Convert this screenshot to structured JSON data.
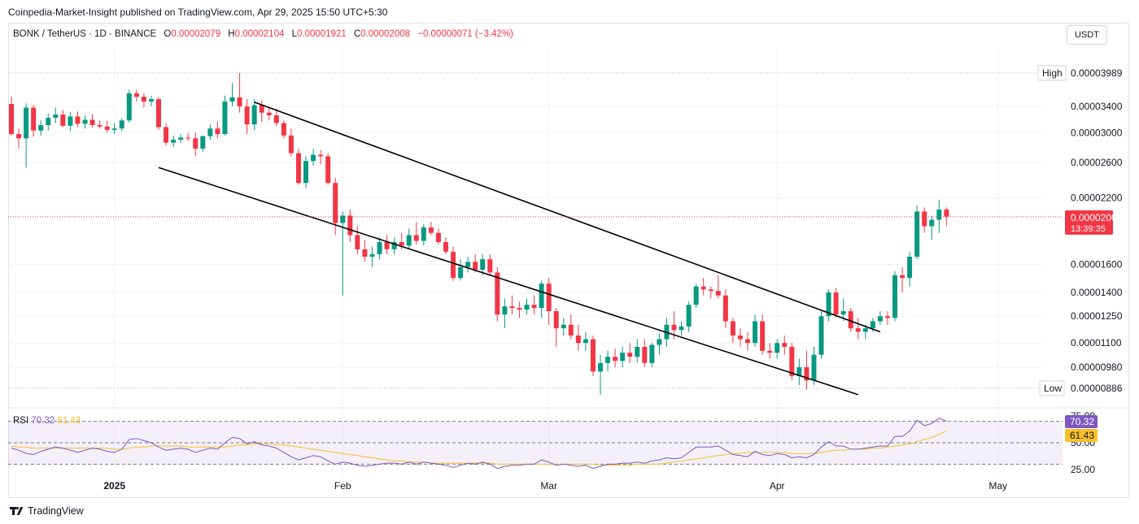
{
  "publisher": "Coinpedia-Market-Insight published on TradingView.com, Apr 29, 2025 15:50 UTC+5:30",
  "legend": {
    "symbol": "BONK / TetherUS · 1D · BINANCE",
    "o_label": "O",
    "o_value": "0.00002079",
    "h_label": "H",
    "h_value": "0.00002104",
    "l_label": "L",
    "l_value": "0.00001921",
    "c_label": "C",
    "c_value": "0.00002008",
    "change": "−0.00000071 (−3.42%)"
  },
  "currency_button": "USDT",
  "brand": "TradingView",
  "colors": {
    "up": "#089981",
    "down": "#f23645",
    "rsi": "#7e57c2",
    "rsi_ma": "#f7c02b",
    "trendline": "#000000"
  },
  "chart_data": {
    "type": "candlestick",
    "price_axis": {
      "ticks": [
        {
          "v": 3.4e-05,
          "label": "0.00003400"
        },
        {
          "v": 3e-05,
          "label": "0.00003000"
        },
        {
          "v": 2.6e-05,
          "label": "0.00002600"
        },
        {
          "v": 2.2e-05,
          "label": "0.00002200"
        },
        {
          "v": 1.6e-05,
          "label": "0.00001600"
        },
        {
          "v": 1.4e-05,
          "label": "0.00001400"
        },
        {
          "v": 1.25e-05,
          "label": "0.00001250"
        },
        {
          "v": 1.1e-05,
          "label": "0.00001100"
        },
        {
          "v": 9.8e-06,
          "label": "0.00000980"
        }
      ],
      "high": {
        "label": "High",
        "value": 3.989e-05,
        "text": "0.00003989"
      },
      "low": {
        "label": "Low",
        "value": 8.86e-06,
        "text": "0.00000886"
      },
      "last": {
        "value": 2.008e-05,
        "text": "0.00002008",
        "countdown": "13:39:35"
      }
    },
    "time_axis": [
      {
        "date": "2025-01-01",
        "label": "2025",
        "bold": true
      },
      {
        "date": "2025-02-01",
        "label": "Feb",
        "bold": false
      },
      {
        "date": "2025-03-01",
        "label": "Mar",
        "bold": false
      },
      {
        "date": "2025-04-01",
        "label": "Apr",
        "bold": false
      },
      {
        "date": "2025-05-01",
        "label": "May",
        "bold": false
      }
    ],
    "first_date": "2024-12-18",
    "candles": [
      [
        3.44e-05,
        3.56e-05,
        2.96e-05,
        2.98e-05
      ],
      [
        2.98e-05,
        3.06e-05,
        2.78e-05,
        2.92e-05
      ],
      [
        2.92e-05,
        3.45e-05,
        2.54e-05,
        3.38e-05
      ],
      [
        3.38e-05,
        3.42e-05,
        2.94e-05,
        3.03e-05
      ],
      [
        3.03e-05,
        3.18e-05,
        2.96e-05,
        3.11e-05
      ],
      [
        3.11e-05,
        3.29e-05,
        3.03e-05,
        3.22e-05
      ],
      [
        3.22e-05,
        3.38e-05,
        3.14e-05,
        3.27e-05
      ],
      [
        3.27e-05,
        3.34e-05,
        3.08e-05,
        3.1e-05
      ],
      [
        3.1e-05,
        3.31e-05,
        3.02e-05,
        3.24e-05
      ],
      [
        3.24e-05,
        3.32e-05,
        3.08e-05,
        3.13e-05
      ],
      [
        3.13e-05,
        3.26e-05,
        3.06e-05,
        3.19e-05
      ],
      [
        3.19e-05,
        3.28e-05,
        3.08e-05,
        3.11e-05
      ],
      [
        3.11e-05,
        3.18e-05,
        3.06e-05,
        3.09e-05
      ],
      [
        3.09e-05,
        3.18e-05,
        3e-05,
        3.04e-05
      ],
      [
        3.04e-05,
        3.14e-05,
        2.98e-05,
        3.06e-05
      ],
      [
        3.06e-05,
        3.22e-05,
        3.02e-05,
        3.18e-05
      ],
      [
        3.18e-05,
        3.68e-05,
        3.15e-05,
        3.62e-05
      ],
      [
        3.62e-05,
        3.68e-05,
        3.48e-05,
        3.56e-05
      ],
      [
        3.56e-05,
        3.62e-05,
        3.38e-05,
        3.48e-05
      ],
      [
        3.48e-05,
        3.58e-05,
        3.4e-05,
        3.52e-05
      ],
      [
        3.52e-05,
        3.56e-05,
        3.04e-05,
        3.08e-05
      ],
      [
        3.08e-05,
        3.14e-05,
        2.82e-05,
        2.86e-05
      ],
      [
        2.86e-05,
        2.96e-05,
        2.8e-05,
        2.9e-05
      ],
      [
        2.9e-05,
        2.98e-05,
        2.86e-05,
        2.93e-05
      ],
      [
        2.93e-05,
        2.99e-05,
        2.88e-05,
        2.92e-05
      ],
      [
        2.92e-05,
        3e-05,
        2.68e-05,
        2.78e-05
      ],
      [
        2.78e-05,
        2.96e-05,
        2.74e-05,
        2.95e-05
      ],
      [
        2.95e-05,
        3.12e-05,
        2.9e-05,
        3.06e-05
      ],
      [
        3.06e-05,
        3.16e-05,
        2.92e-05,
        2.98e-05
      ],
      [
        2.98e-05,
        3.58e-05,
        2.96e-05,
        3.48e-05
      ],
      [
        3.48e-05,
        3.8e-05,
        3.4e-05,
        3.55e-05
      ],
      [
        3.55e-05,
        3.99e-05,
        3.3e-05,
        3.4e-05
      ],
      [
        3.4e-05,
        3.52e-05,
        2.98e-05,
        3.12e-05
      ],
      [
        3.12e-05,
        3.52e-05,
        3.04e-05,
        3.42e-05
      ],
      [
        3.42e-05,
        3.5e-05,
        3.16e-05,
        3.3e-05
      ],
      [
        3.3e-05,
        3.38e-05,
        3.18e-05,
        3.26e-05
      ],
      [
        3.26e-05,
        3.36e-05,
        3.1e-05,
        3.14e-05
      ],
      [
        3.14e-05,
        3.18e-05,
        2.92e-05,
        2.96e-05
      ],
      [
        2.96e-05,
        3.06e-05,
        2.68e-05,
        2.72e-05
      ],
      [
        2.72e-05,
        2.78e-05,
        2.34e-05,
        2.36e-05
      ],
      [
        2.36e-05,
        2.68e-05,
        2.3e-05,
        2.62e-05
      ],
      [
        2.62e-05,
        2.78e-05,
        2.56e-05,
        2.7e-05
      ],
      [
        2.7e-05,
        2.76e-05,
        2.58e-05,
        2.68e-05
      ],
      [
        2.68e-05,
        2.72e-05,
        2.34e-05,
        2.36e-05
      ],
      [
        2.36e-05,
        2.42e-05,
        1.84e-05,
        1.95e-05
      ],
      [
        1.95e-05,
        2.06e-05,
        1.38e-05,
        2.02e-05
      ],
      [
        2.02e-05,
        2.08e-05,
        1.78e-05,
        1.84e-05
      ],
      [
        1.84e-05,
        1.92e-05,
        1.68e-05,
        1.72e-05
      ],
      [
        1.72e-05,
        1.8e-05,
        1.62e-05,
        1.66e-05
      ],
      [
        1.66e-05,
        1.74e-05,
        1.58e-05,
        1.68e-05
      ],
      [
        1.68e-05,
        1.82e-05,
        1.64e-05,
        1.78e-05
      ],
      [
        1.78e-05,
        1.84e-05,
        1.68e-05,
        1.72e-05
      ],
      [
        1.72e-05,
        1.82e-05,
        1.68e-05,
        1.78e-05
      ],
      [
        1.78e-05,
        1.86e-05,
        1.72e-05,
        1.75e-05
      ],
      [
        1.75e-05,
        1.9e-05,
        1.72e-05,
        1.84e-05
      ],
      [
        1.84e-05,
        1.96e-05,
        1.76e-05,
        1.79e-05
      ],
      [
        1.79e-05,
        1.94e-05,
        1.75e-05,
        1.91e-05
      ],
      [
        1.91e-05,
        1.96e-05,
        1.84e-05,
        1.86e-05
      ],
      [
        1.86e-05,
        1.9e-05,
        1.76e-05,
        1.78e-05
      ],
      [
        1.78e-05,
        1.82e-05,
        1.68e-05,
        1.7e-05
      ],
      [
        1.7e-05,
        1.74e-05,
        1.48e-05,
        1.5e-05
      ],
      [
        1.5e-05,
        1.64e-05,
        1.48e-05,
        1.58e-05
      ],
      [
        1.58e-05,
        1.66e-05,
        1.54e-05,
        1.62e-05
      ],
      [
        1.62e-05,
        1.68e-05,
        1.54e-05,
        1.56e-05
      ],
      [
        1.56e-05,
        1.68e-05,
        1.52e-05,
        1.64e-05
      ],
      [
        1.64e-05,
        1.68e-05,
        1.52e-05,
        1.54e-05
      ],
      [
        1.54e-05,
        1.58e-05,
        1.22e-05,
        1.26e-05
      ],
      [
        1.26e-05,
        1.36e-05,
        1.18e-05,
        1.31e-05
      ],
      [
        1.31e-05,
        1.38e-05,
        1.26e-05,
        1.3e-05
      ],
      [
        1.3e-05,
        1.34e-05,
        1.24e-05,
        1.29e-05
      ],
      [
        1.29e-05,
        1.36e-05,
        1.26e-05,
        1.32e-05
      ],
      [
        1.32e-05,
        1.38e-05,
        1.26e-05,
        1.3e-05
      ],
      [
        1.3e-05,
        1.48e-05,
        1.24e-05,
        1.46e-05
      ],
      [
        1.46e-05,
        1.5e-05,
        1.2e-05,
        1.28e-05
      ],
      [
        1.28e-05,
        1.3e-05,
        1.08e-05,
        1.18e-05
      ],
      [
        1.18e-05,
        1.24e-05,
        1.14e-05,
        1.2e-05
      ],
      [
        1.2e-05,
        1.26e-05,
        1.12e-05,
        1.14e-05
      ],
      [
        1.14e-05,
        1.2e-05,
        1.06e-05,
        1.1e-05
      ],
      [
        1.1e-05,
        1.16e-05,
        1.06e-05,
        1.12e-05
      ],
      [
        1.12e-05,
        1.14e-05,
        9.4e-06,
        9.6e-06
      ],
      [
        9.6e-06,
        1.04e-05,
        8.6e-06,
        1e-05
      ],
      [
        1e-05,
        1.06e-05,
        9.6e-06,
        1.03e-05
      ],
      [
        1.03e-05,
        1.07e-05,
        9.8e-06,
        1.01e-05
      ],
      [
        1.01e-05,
        1.08e-05,
        9.8e-06,
        1.05e-05
      ],
      [
        1.05e-05,
        1.1e-05,
        1e-05,
        1.03e-05
      ],
      [
        1.03e-05,
        1.12e-05,
        1e-05,
        1.08e-05
      ],
      [
        1.08e-05,
        1.12e-05,
        9.8e-06,
        1e-05
      ],
      [
        1e-05,
        1.1e-05,
        9.8e-06,
        1.09e-05
      ],
      [
        1.09e-05,
        1.15e-05,
        1.04e-05,
        1.12e-05
      ],
      [
        1.12e-05,
        1.24e-05,
        1.08e-05,
        1.2e-05
      ],
      [
        1.2e-05,
        1.28e-05,
        1.12e-05,
        1.17e-05
      ],
      [
        1.17e-05,
        1.22e-05,
        1.14e-05,
        1.19e-05
      ],
      [
        1.19e-05,
        1.34e-05,
        1.16e-05,
        1.32e-05
      ],
      [
        1.32e-05,
        1.46e-05,
        1.3e-05,
        1.44e-05
      ],
      [
        1.44e-05,
        1.5e-05,
        1.38e-05,
        1.42e-05
      ],
      [
        1.42e-05,
        1.44e-05,
        1.36e-05,
        1.41e-05
      ],
      [
        1.41e-05,
        1.52e-05,
        1.36e-05,
        1.38e-05
      ],
      [
        1.38e-05,
        1.42e-05,
        1.18e-05,
        1.22e-05
      ],
      [
        1.22e-05,
        1.24e-05,
        1.1e-05,
        1.14e-05
      ],
      [
        1.14e-05,
        1.18e-05,
        1.08e-05,
        1.12e-05
      ],
      [
        1.12e-05,
        1.16e-05,
        1.06e-05,
        1.1e-05
      ],
      [
        1.1e-05,
        1.26e-05,
        1.08e-05,
        1.22e-05
      ],
      [
        1.22e-05,
        1.26e-05,
        1.04e-05,
        1.06e-05
      ],
      [
        1.06e-05,
        1.1e-05,
        1.02e-05,
        1.05e-05
      ],
      [
        1.05e-05,
        1.12e-05,
        1.02e-05,
        1.1e-05
      ],
      [
        1.1e-05,
        1.14e-05,
        1.04e-05,
        1.08e-05
      ],
      [
        1.08e-05,
        1.1e-05,
        9.2e-06,
        9.4e-06
      ],
      [
        9.4e-06,
        1.02e-05,
        9e-06,
        9.8e-06
      ],
      [
        9.8e-06,
        1.06e-05,
        8.8e-06,
        9.2e-06
      ],
      [
        9.2e-06,
        1.08e-05,
        9e-06,
        1.04e-05
      ],
      [
        1.04e-05,
        1.28e-05,
        1.02e-05,
        1.25e-05
      ],
      [
        1.25e-05,
        1.42e-05,
        1.22e-05,
        1.4e-05
      ],
      [
        1.4e-05,
        1.43e-05,
        1.24e-05,
        1.26e-05
      ],
      [
        1.26e-05,
        1.36e-05,
        1.22e-05,
        1.28e-05
      ],
      [
        1.28e-05,
        1.3e-05,
        1.16e-05,
        1.18e-05
      ],
      [
        1.18e-05,
        1.24e-05,
        1.12e-05,
        1.16e-05
      ],
      [
        1.16e-05,
        1.2e-05,
        1.12e-05,
        1.18e-05
      ],
      [
        1.18e-05,
        1.24e-05,
        1.16e-05,
        1.22e-05
      ],
      [
        1.22e-05,
        1.28e-05,
        1.2e-05,
        1.25e-05
      ],
      [
        1.25e-05,
        1.28e-05,
        1.2e-05,
        1.24e-05
      ],
      [
        1.24e-05,
        1.55e-05,
        1.22e-05,
        1.52e-05
      ],
      [
        1.52e-05,
        1.58e-05,
        1.4e-05,
        1.5e-05
      ],
      [
        1.5e-05,
        1.7e-05,
        1.44e-05,
        1.66e-05
      ],
      [
        1.66e-05,
        2.12e-05,
        1.64e-05,
        2.06e-05
      ],
      [
        2.06e-05,
        2.1e-05,
        1.86e-05,
        1.92e-05
      ],
      [
        1.92e-05,
        2.02e-05,
        1.8e-05,
        1.98e-05
      ],
      [
        1.98e-05,
        2.18e-05,
        1.86e-05,
        2.08e-05
      ],
      [
        2.08e-05,
        2.1e-05,
        1.92e-05,
        2.01e-05
      ]
    ],
    "trendlines": [
      {
        "name": "upper",
        "from": {
          "date": "2025-01-20",
          "price": 3.47e-05
        },
        "to": {
          "date": "2025-04-15",
          "price": 1.16e-05
        }
      },
      {
        "name": "lower",
        "from": {
          "date": "2025-01-07",
          "price": 2.54e-05
        },
        "to": {
          "date": "2025-04-12",
          "price": 8.6e-06
        }
      }
    ],
    "rsi": {
      "label": "RSI",
      "value_text": "70.32",
      "ma_text": "61.43",
      "values": [
        45,
        43,
        40,
        39,
        42,
        44,
        46,
        45,
        43,
        41,
        43,
        45,
        44,
        42,
        41,
        44,
        53,
        54,
        52,
        50,
        46,
        43,
        44,
        45,
        44,
        41,
        43,
        45,
        44,
        50,
        55,
        54,
        49,
        51,
        48,
        47,
        45,
        41,
        37,
        34,
        36,
        38,
        37,
        33,
        30,
        32,
        31,
        29,
        28,
        29,
        30,
        31,
        31,
        30,
        32,
        30,
        32,
        31,
        30,
        29,
        27,
        29,
        31,
        30,
        32,
        30,
        26,
        28,
        29,
        29,
        30,
        30,
        34,
        32,
        29,
        30,
        29,
        28,
        29,
        26,
        28,
        30,
        30,
        31,
        31,
        32,
        31,
        33,
        34,
        36,
        35,
        36,
        41,
        46,
        46,
        46,
        47,
        43,
        39,
        38,
        37,
        42,
        39,
        38,
        40,
        39,
        36,
        37,
        36,
        39,
        46,
        51,
        47,
        47,
        44,
        44,
        45,
        46,
        47,
        47,
        56,
        56,
        61,
        71,
        66,
        68,
        73,
        70
      ],
      "ma": [
        47,
        46,
        46,
        45,
        45,
        45,
        45,
        45,
        45,
        45,
        45,
        45,
        45,
        45,
        44,
        44,
        45,
        46,
        46,
        47,
        47,
        47,
        47,
        47,
        46,
        46,
        46,
        46,
        46,
        46,
        47,
        48,
        48,
        49,
        49,
        49,
        48,
        48,
        47,
        46,
        45,
        44,
        43,
        42,
        41,
        40,
        39,
        38,
        37,
        36,
        35,
        34,
        33,
        33,
        32,
        32,
        32,
        31,
        31,
        31,
        31,
        31,
        31,
        31,
        31,
        31,
        30,
        30,
        30,
        30,
        30,
        30,
        30,
        30,
        30,
        30,
        30,
        30,
        30,
        30,
        29,
        29,
        29,
        29,
        29,
        30,
        30,
        30,
        30,
        31,
        32,
        33,
        34,
        35,
        36,
        37,
        38,
        39,
        40,
        40,
        41,
        41,
        41,
        41,
        41,
        41,
        40,
        40,
        40,
        40,
        41,
        42,
        43,
        43,
        44,
        44,
        44,
        45,
        45,
        46,
        47,
        48,
        49,
        51,
        53,
        55,
        58,
        61
      ],
      "ticks": [
        {
          "v": 75,
          "label": "75.00"
        },
        {
          "v": 50,
          "label": "50.00"
        },
        {
          "v": 25,
          "label": "25.00"
        }
      ],
      "upper_band": 70,
      "middle_band": 50,
      "lower_band": 30
    }
  }
}
